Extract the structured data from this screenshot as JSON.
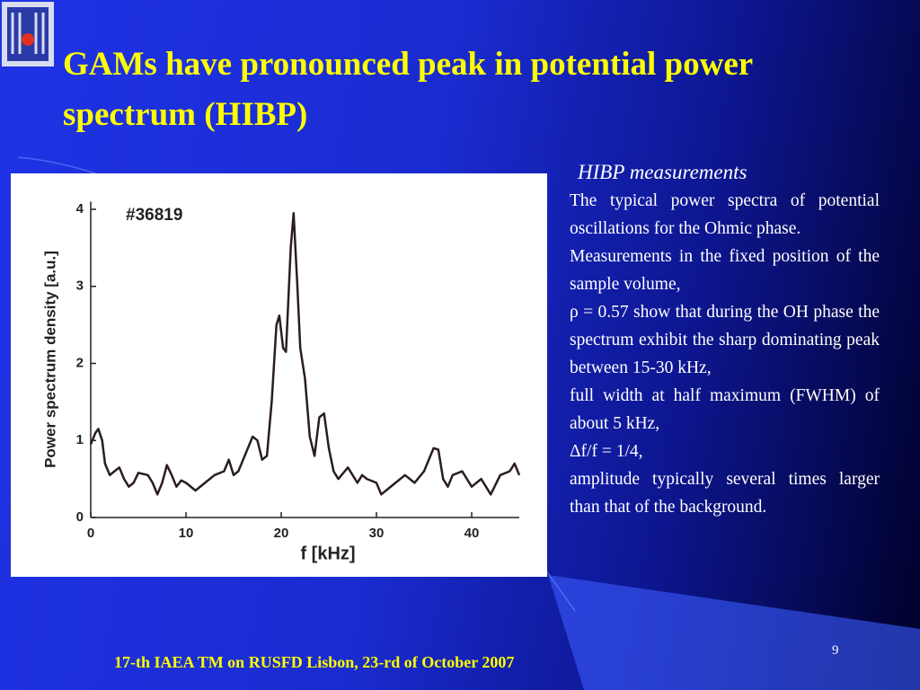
{
  "header": {
    "title": "GAMs have pronounced peak in potential power spectrum (HIBP)"
  },
  "chart_data": {
    "type": "line",
    "annotation": "#36819",
    "x_label": "f [kHz]",
    "y_label": "Power spectrum density [a.u.]",
    "x": [
      0,
      0.5,
      0.8,
      1.2,
      1.5,
      2,
      2.5,
      3,
      3.5,
      4,
      4.5,
      5,
      6,
      6.5,
      7,
      7.5,
      8,
      8.5,
      9,
      9.5,
      10,
      11,
      12,
      13,
      14,
      14.5,
      15,
      15.5,
      16,
      17,
      17.5,
      18,
      18.5,
      19,
      19.5,
      19.8,
      20.2,
      20.5,
      21,
      21.3,
      21.7,
      22,
      22.5,
      23,
      23.5,
      24,
      24.5,
      25,
      25.5,
      26,
      27,
      27.5,
      28,
      28.5,
      29,
      30,
      30.5,
      31,
      32,
      33,
      34,
      35,
      36,
      36.5,
      37,
      37.5,
      38,
      39,
      40,
      41,
      42,
      43,
      44,
      44.5,
      45
    ],
    "values": [
      0.95,
      1.1,
      1.15,
      1.0,
      0.7,
      0.55,
      0.6,
      0.65,
      0.5,
      0.4,
      0.45,
      0.58,
      0.55,
      0.45,
      0.3,
      0.45,
      0.68,
      0.55,
      0.4,
      0.48,
      0.45,
      0.35,
      0.45,
      0.55,
      0.6,
      0.75,
      0.55,
      0.6,
      0.75,
      1.05,
      1.0,
      0.75,
      0.8,
      1.5,
      2.5,
      2.62,
      2.2,
      2.15,
      3.5,
      3.95,
      3.0,
      2.2,
      1.8,
      1.05,
      0.8,
      1.3,
      1.35,
      0.9,
      0.6,
      0.5,
      0.65,
      0.55,
      0.45,
      0.55,
      0.5,
      0.45,
      0.3,
      0.35,
      0.45,
      0.55,
      0.45,
      0.6,
      0.9,
      0.88,
      0.5,
      0.4,
      0.55,
      0.6,
      0.4,
      0.5,
      0.3,
      0.55,
      0.6,
      0.7,
      0.55
    ],
    "color": "#2b1d1d",
    "xlim": [
      0,
      45
    ],
    "ylim": [
      0,
      4.1
    ],
    "xticks": [
      0,
      10,
      20,
      30,
      40
    ],
    "yticks": [
      0,
      1,
      2,
      3,
      4
    ]
  },
  "side": {
    "heading": "HIBP measurements",
    "paragraphs": [
      "The typical power spectra of potential oscillations for the Ohmic phase.",
      "Measurements in the fixed position of the sample volume,",
      "ρ = 0.57 show that during the OH phase the spectrum exhibit the sharp dominating peak between 15-30 kHz,",
      "full width at half maximum (FWHM) of about 5 kHz,",
      "Δf/f = 1/4,",
      "amplitude typically several times larger than that of the background."
    ]
  },
  "footer": {
    "text": "17-th IAEA TM on RUSFD Lisbon, 23-rd of October 2007",
    "page": "9"
  }
}
